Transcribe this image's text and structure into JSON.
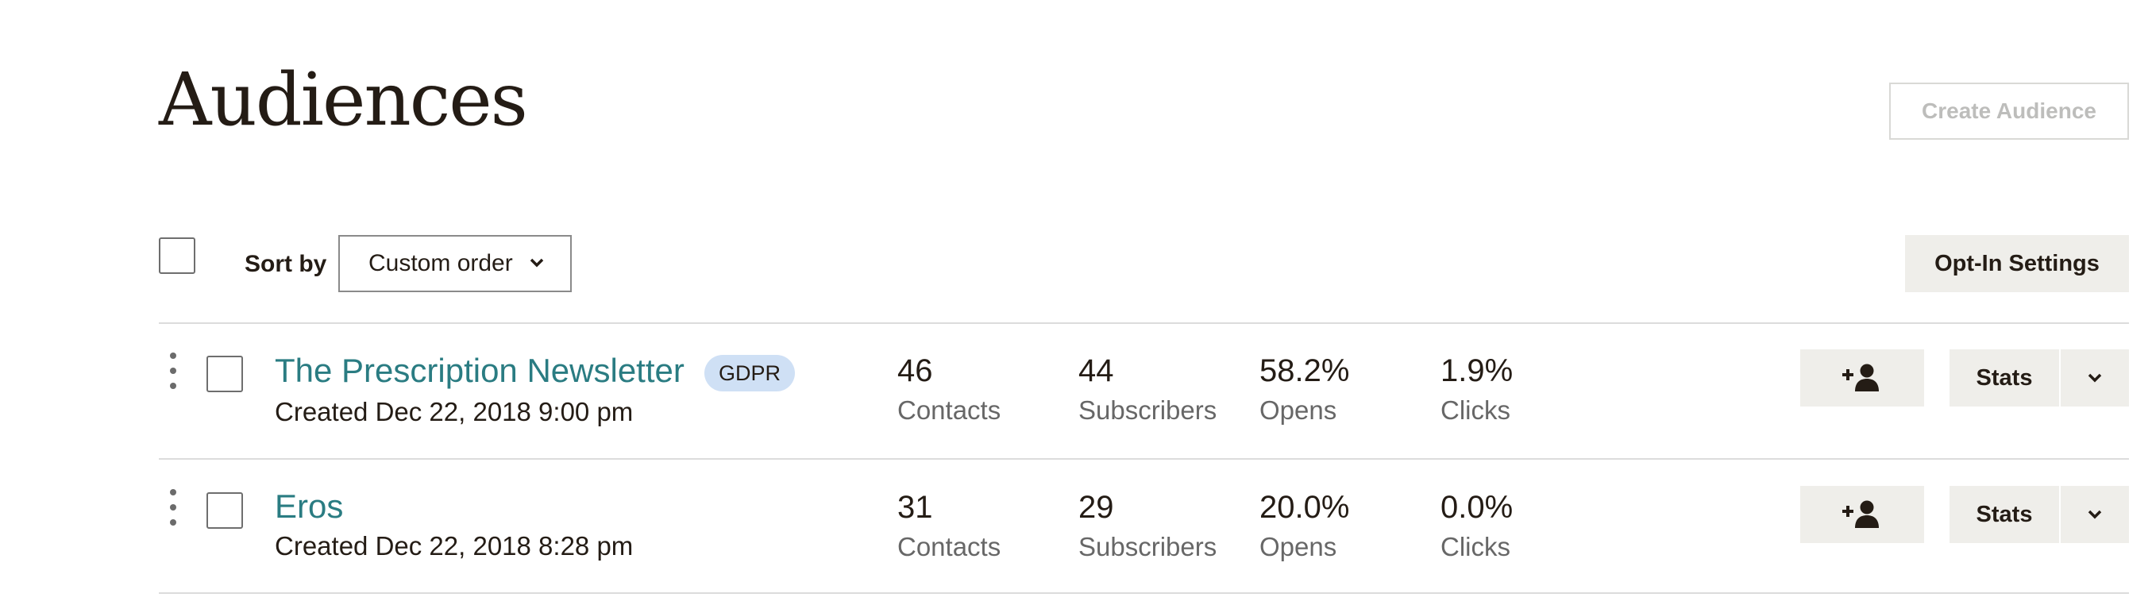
{
  "header": {
    "title": "Audiences",
    "create_label": "Create Audience"
  },
  "toolbar": {
    "sort_label": "Sort by",
    "sort_value": "Custom order",
    "optin_label": "Opt-In Settings"
  },
  "audiences": [
    {
      "name": "The Prescription Newsletter",
      "badge": "GDPR",
      "created": "Created Dec 22, 2018 9:00 pm",
      "contacts": {
        "value": "46",
        "label": "Contacts"
      },
      "subscribers": {
        "value": "44",
        "label": "Subscribers"
      },
      "opens": {
        "value": "58.2%",
        "label": "Opens"
      },
      "clicks": {
        "value": "1.9%",
        "label": "Clicks"
      },
      "stats_label": "Stats"
    },
    {
      "name": "Eros",
      "created": "Created Dec 22, 2018 8:28 pm",
      "contacts": {
        "value": "31",
        "label": "Contacts"
      },
      "subscribers": {
        "value": "29",
        "label": "Subscribers"
      },
      "opens": {
        "value": "20.0%",
        "label": "Opens"
      },
      "clicks": {
        "value": "0.0%",
        "label": "Clicks"
      },
      "stats_label": "Stats"
    }
  ],
  "colors": {
    "link": "#2a7c82",
    "button_bg": "#efeeea",
    "badge_bg": "#cfe0f5"
  },
  "icons": {
    "add_contact": "add-user-icon",
    "dropdown": "chevron-down-icon",
    "drag": "drag-handle-icon"
  }
}
